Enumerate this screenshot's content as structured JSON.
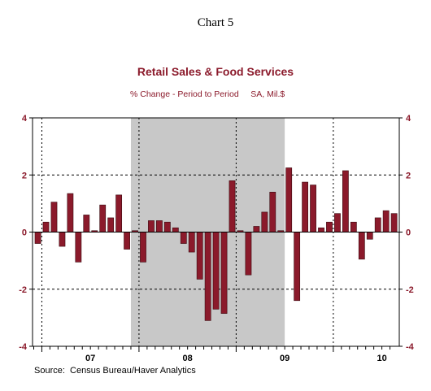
{
  "heading": "Chart 5",
  "chart_data": {
    "type": "bar",
    "title": "Retail Sales & Food Services",
    "subtitle": "% Change - Period to Period     SA, Mil.$",
    "source": "Source:  Census Bureau/Haver Analytics",
    "xlabel": "",
    "ylabel": "",
    "ylim": [
      -4,
      4
    ],
    "yticks": [
      -4,
      -2,
      0,
      2,
      4
    ],
    "year_labels": [
      "07",
      "08",
      "09",
      "10"
    ],
    "categories": [
      "2006-12",
      "2007-01",
      "2007-02",
      "2007-03",
      "2007-04",
      "2007-05",
      "2007-06",
      "2007-07",
      "2007-08",
      "2007-09",
      "2007-10",
      "2007-11",
      "2007-12",
      "2008-01",
      "2008-02",
      "2008-03",
      "2008-04",
      "2008-05",
      "2008-06",
      "2008-07",
      "2008-08",
      "2008-09",
      "2008-10",
      "2008-11",
      "2008-12",
      "2009-01",
      "2009-02",
      "2009-03",
      "2009-04",
      "2009-05",
      "2009-06",
      "2009-07",
      "2009-08",
      "2009-09",
      "2009-10",
      "2009-11",
      "2009-12",
      "2010-01",
      "2010-02",
      "2010-03",
      "2010-04",
      "2010-05",
      "2010-06",
      "2010-07",
      "2010-08"
    ],
    "values": [
      -0.4,
      0.35,
      1.05,
      -0.5,
      1.35,
      -1.05,
      0.6,
      0.05,
      0.95,
      0.5,
      1.3,
      -0.6,
      0.05,
      -1.05,
      0.4,
      0.4,
      0.35,
      0.15,
      -0.4,
      -0.7,
      -1.65,
      -3.1,
      -2.7,
      -2.85,
      1.8,
      0.05,
      -1.5,
      0.2,
      0.7,
      1.4,
      0.05,
      2.25,
      -2.4,
      1.75,
      1.65,
      0.15,
      0.35,
      0.65,
      2.15,
      0.35,
      -0.95,
      -0.25,
      0.5,
      0.75,
      0.65
    ],
    "bar_color": "#8b1a2b",
    "recession": {
      "start": "2007-12",
      "end": "2009-06",
      "color": "#c8c8c8"
    },
    "grid": "dashed horizontal at ±2, dotted vertical at year starts"
  }
}
